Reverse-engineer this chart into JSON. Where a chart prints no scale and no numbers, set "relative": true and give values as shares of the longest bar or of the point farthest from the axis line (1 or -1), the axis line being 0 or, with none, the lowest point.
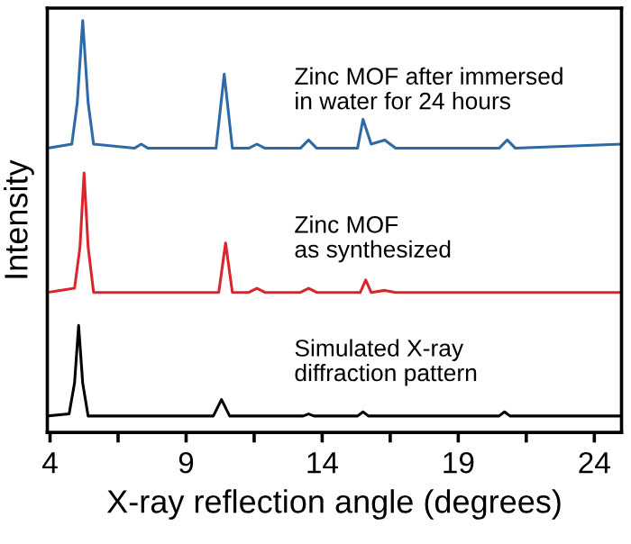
{
  "chart_data": {
    "type": "line",
    "relative": true,
    "xlabel": "X-ray reflection angle (degrees)",
    "ylabel": "Intensity",
    "xlim": [
      3.9,
      25
    ],
    "xticks": [
      4,
      {
        "value": 6.5,
        "label": null
      },
      9,
      {
        "value": 11.5,
        "label": null
      },
      14,
      {
        "value": 16.5,
        "label": null
      },
      19,
      {
        "value": 21.5,
        "label": null
      },
      24
    ],
    "grid": false,
    "legend": false,
    "marker": "none",
    "line_style": "solid",
    "series": [
      {
        "name": "Zinc MOF after immersed\nin water for 24 hours",
        "color": "#2e6aa8",
        "x": [
          3.9,
          4.8,
          5.0,
          5.2,
          5.4,
          5.6,
          7.1,
          7.35,
          7.6,
          10.1,
          10.4,
          10.7,
          11.3,
          11.6,
          11.9,
          13.2,
          13.5,
          13.8,
          15.3,
          15.5,
          15.8,
          16.3,
          16.7,
          20.5,
          20.8,
          21.1,
          25
        ],
        "values": [
          0.69,
          0.7,
          0.8,
          1.0,
          0.8,
          0.7,
          0.69,
          0.7,
          0.69,
          0.69,
          0.87,
          0.69,
          0.69,
          0.7,
          0.69,
          0.69,
          0.71,
          0.69,
          0.69,
          0.76,
          0.7,
          0.71,
          0.69,
          0.69,
          0.71,
          0.69,
          0.7
        ]
      },
      {
        "name": "Zinc MOF\nas synthesized",
        "color": "#d9262c",
        "x": [
          3.9,
          4.9,
          5.1,
          5.25,
          5.4,
          5.6,
          10.2,
          10.45,
          10.7,
          11.3,
          11.6,
          11.9,
          13.2,
          13.5,
          13.8,
          15.4,
          15.6,
          15.8,
          16.3,
          16.7,
          25
        ],
        "values": [
          0.34,
          0.35,
          0.45,
          0.63,
          0.45,
          0.34,
          0.34,
          0.46,
          0.34,
          0.34,
          0.35,
          0.34,
          0.34,
          0.35,
          0.34,
          0.34,
          0.37,
          0.34,
          0.345,
          0.34,
          0.34
        ]
      },
      {
        "name": "Simulated X-ray\ndiffraction pattern",
        "color": "#000000",
        "x": [
          3.9,
          4.7,
          4.9,
          5.05,
          5.2,
          5.4,
          10.0,
          10.3,
          10.6,
          13.3,
          13.5,
          13.7,
          15.3,
          15.5,
          15.7,
          20.5,
          20.7,
          20.9,
          25
        ],
        "values": [
          0.04,
          0.045,
          0.12,
          0.26,
          0.12,
          0.04,
          0.04,
          0.08,
          0.04,
          0.04,
          0.045,
          0.04,
          0.04,
          0.05,
          0.04,
          0.04,
          0.05,
          0.04,
          0.04
        ]
      }
    ]
  }
}
